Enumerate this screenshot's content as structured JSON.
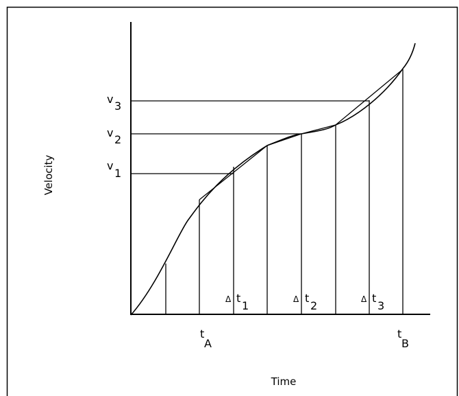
{
  "axes": {
    "y_title": "Velocity",
    "x_title": "Time"
  },
  "velocity_labels": [
    {
      "base": "v",
      "sub": "3"
    },
    {
      "base": "v",
      "sub": "2"
    },
    {
      "base": "v",
      "sub": "1"
    }
  ],
  "time_labels": [
    {
      "base": "t",
      "sub": "A"
    },
    {
      "base": "t",
      "sub": "B"
    }
  ],
  "interval_labels": [
    {
      "delta": "Δ",
      "base": "t",
      "sub": "1"
    },
    {
      "delta": "Δ",
      "base": "t",
      "sub": "2"
    },
    {
      "delta": "Δ",
      "base": "t",
      "sub": "3"
    }
  ]
}
